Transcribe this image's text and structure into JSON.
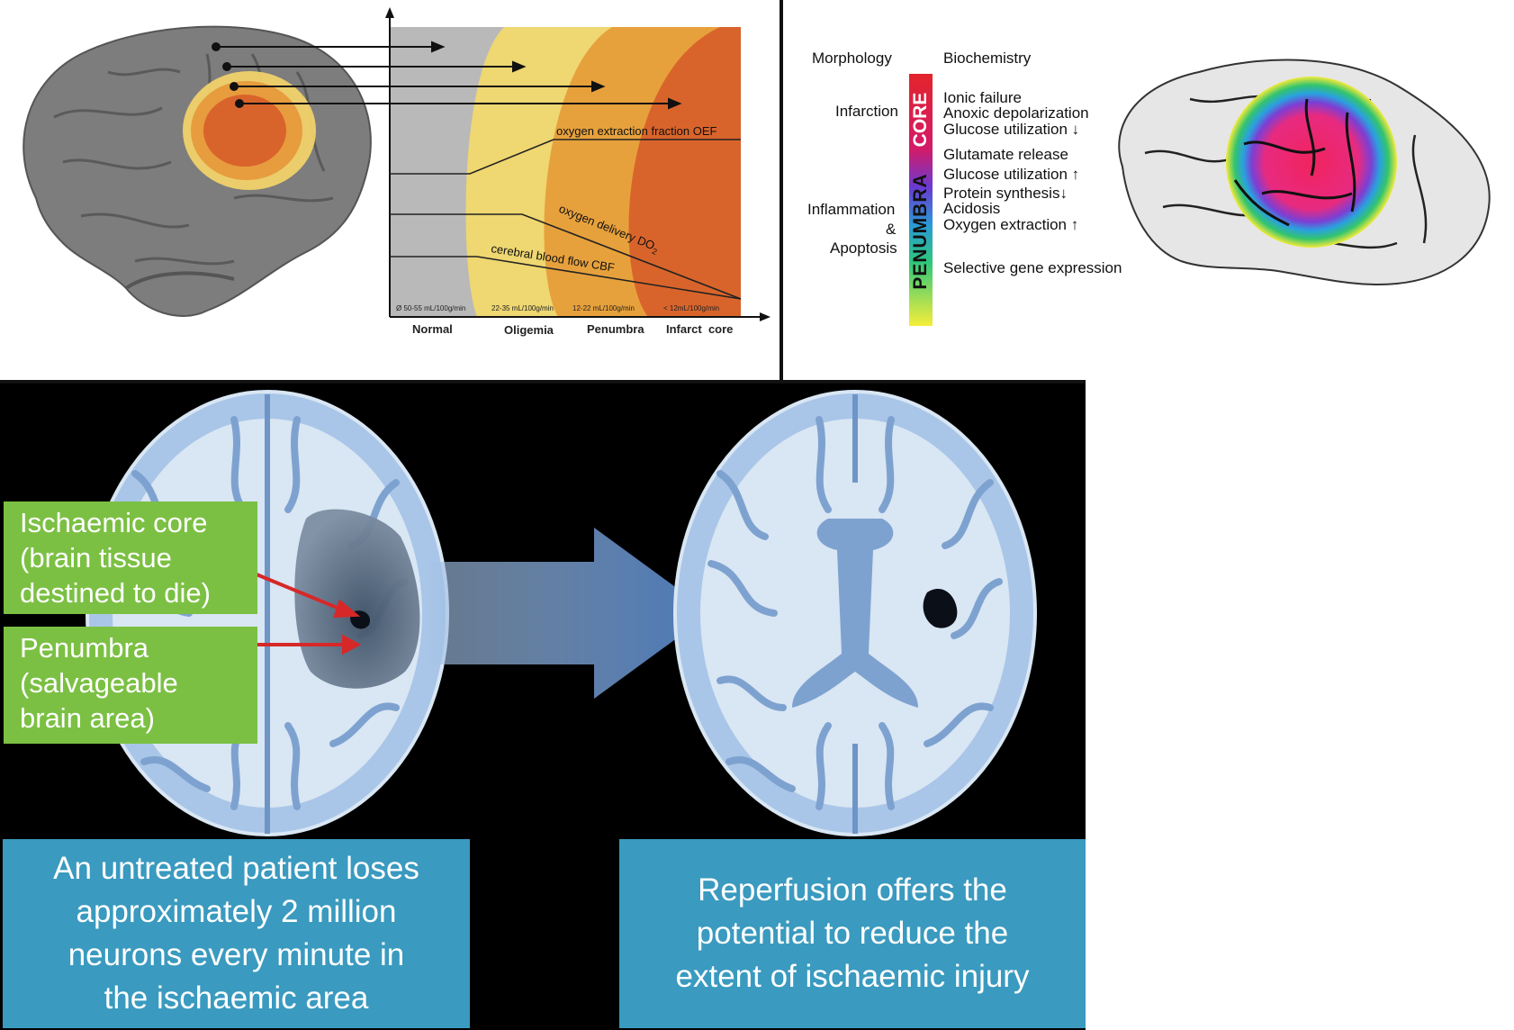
{
  "panel_a": {
    "zones": [
      "Normal",
      "Oligemia",
      "Penumbra",
      "Infarct  core"
    ],
    "cbf_ranges": [
      "Ø 50-55 mL/100g/min",
      "22-35 mL/100g/min",
      "12-22 mL/100g/min",
      "< 12mL/100g/min"
    ],
    "curves": {
      "oef": "oxygen extraction fraction OEF",
      "do2": "oxygen delivery DO",
      "do2_sub": "2",
      "cbf": "cerebral blood flow CBF"
    },
    "colors": {
      "normal": "#b9b9b9",
      "oligemia": "#efd771",
      "penumbra": "#e7a13c",
      "core": "#d9642b"
    }
  },
  "panel_b": {
    "headers": {
      "morphology": "Morphology",
      "biochemistry": "Biochemistry"
    },
    "morphology": {
      "infarction": "Infarction",
      "inflammation": "Inflammation",
      "amp": "&",
      "apoptosis": "Apoptosis"
    },
    "bar": {
      "core": "CORE",
      "penumbra": "PENUMBRA"
    },
    "biochem": [
      "Ionic failure",
      "Anoxic depolarization",
      "Glucose utilization ↓",
      "Glutamate release",
      "Glucose utilization ↑",
      "Protein synthesis↓",
      "Acidosis",
      "Oxygen extraction ↑",
      "Selective gene expression"
    ]
  },
  "panel_c": {
    "labels": {
      "core": [
        "Ischaemic core",
        "(brain tissue",
        "destined to die)"
      ],
      "penumbra": [
        "Penumbra",
        "(salvageable",
        "brain area)"
      ]
    },
    "captions": {
      "left": [
        "An untreated patient loses",
        "approximately 2 million",
        "neurons every minute in",
        "the ischaemic area"
      ],
      "right": [
        "Reperfusion offers the",
        "potential to reduce the",
        "extent of ischaemic injury"
      ]
    },
    "colors": {
      "label_bg": "#7bc043",
      "caption_bg": "#3a9abf",
      "arrow": "#d62828",
      "brain": "#a9c6e8"
    }
  }
}
